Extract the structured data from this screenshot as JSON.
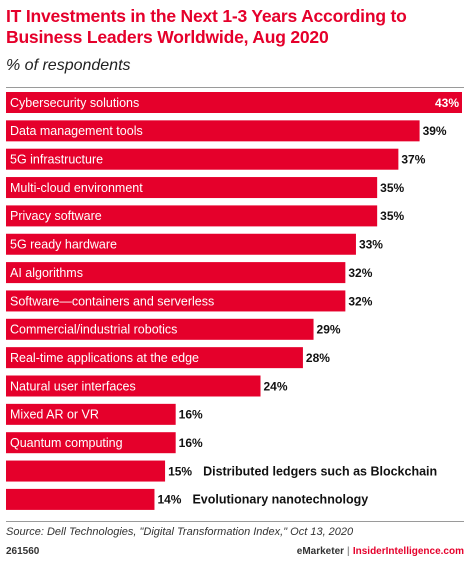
{
  "header": {
    "title": "IT Investments in the Next 1-3 Years According to Business Leaders Worldwide, Aug 2020",
    "subtitle": "% of respondents"
  },
  "footer": {
    "source": "Source: Dell Technologies, \"Digital Transformation Index,\" Oct 13, 2020",
    "chart_id": "261560",
    "brand_emarketer": "eMarketer",
    "brand_separator": "|",
    "brand_insider": "InsiderIntelligence.com"
  },
  "colors": {
    "accent": "#e5002b",
    "bar": "#e5002b",
    "bar_label": "#ffffff",
    "text": "#111111"
  },
  "chart_data": {
    "type": "bar",
    "orientation": "horizontal",
    "unit": "%",
    "xlim": [
      0,
      43
    ],
    "grid": false,
    "legend": "none",
    "categories": [
      "Cybersecurity solutions",
      "Data management tools",
      "5G infrastructure",
      "Multi-cloud environment",
      "Privacy software",
      "5G ready hardware",
      "AI algorithms",
      "Software—containers and serverless",
      "Commercial/industrial robotics",
      "Real-time applications at the edge",
      "Natural user interfaces",
      "Mixed AR or VR",
      "Quantum computing",
      "Distributed ledgers such as Blockchain",
      "Evolutionary nanotechnology"
    ],
    "values": [
      43,
      39,
      37,
      35,
      35,
      33,
      32,
      32,
      29,
      28,
      24,
      16,
      16,
      15,
      14
    ],
    "value_labels": [
      "43%",
      "39%",
      "37%",
      "35%",
      "35%",
      "33%",
      "32%",
      "32%",
      "29%",
      "28%",
      "24%",
      "16%",
      "16%",
      "15%",
      "14%"
    ]
  }
}
